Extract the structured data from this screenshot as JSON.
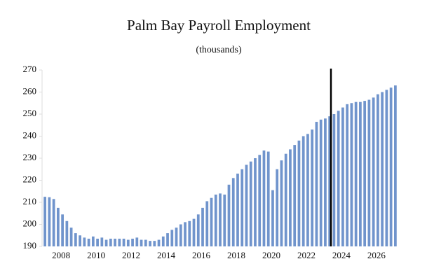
{
  "chart_data": {
    "type": "bar",
    "title": "Palm Bay Payroll Employment",
    "subtitle": "(thousands)",
    "categories": [
      null,
      null,
      null,
      null,
      "2008",
      null,
      null,
      null,
      null,
      null,
      null,
      null,
      "2010",
      null,
      null,
      null,
      null,
      null,
      null,
      null,
      "2012",
      null,
      null,
      null,
      null,
      null,
      null,
      null,
      "2014",
      null,
      null,
      null,
      null,
      null,
      null,
      null,
      "2016",
      null,
      null,
      null,
      null,
      null,
      null,
      null,
      "2018",
      null,
      null,
      null,
      null,
      null,
      null,
      null,
      "2020",
      null,
      null,
      null,
      null,
      null,
      null,
      null,
      "2022",
      null,
      null,
      null,
      null,
      null,
      null,
      null,
      "2024",
      null,
      null,
      null,
      null,
      null,
      null,
      null,
      "2026",
      null,
      null,
      null,
      null
    ],
    "values": [
      212.5,
      212.3,
      211.5,
      207.5,
      204.5,
      201.5,
      198.5,
      196,
      195,
      194,
      193.5,
      194.5,
      193.5,
      194,
      193,
      193.5,
      193.5,
      193.5,
      193.5,
      193,
      193.5,
      194,
      193,
      193,
      192.5,
      192.5,
      193,
      194.5,
      196,
      197.5,
      198.5,
      200,
      201,
      201.5,
      202.5,
      204.5,
      207.5,
      210.5,
      212,
      213.5,
      214,
      213.5,
      218,
      221,
      223,
      225,
      227,
      228.5,
      230,
      231.5,
      233.5,
      233,
      215.5,
      225,
      229,
      232,
      234,
      236,
      238,
      240,
      241,
      243,
      246.5,
      247.5,
      248,
      249,
      250,
      251.5,
      253,
      254.5,
      255,
      255.5,
      255.5,
      256,
      256.5,
      257.5,
      259,
      260,
      261,
      262,
      263
    ],
    "color": "#7094cc",
    "ylim": [
      190,
      270
    ],
    "yticks": [
      190,
      200,
      210,
      220,
      230,
      240,
      250,
      260,
      270
    ],
    "grid": false
  }
}
